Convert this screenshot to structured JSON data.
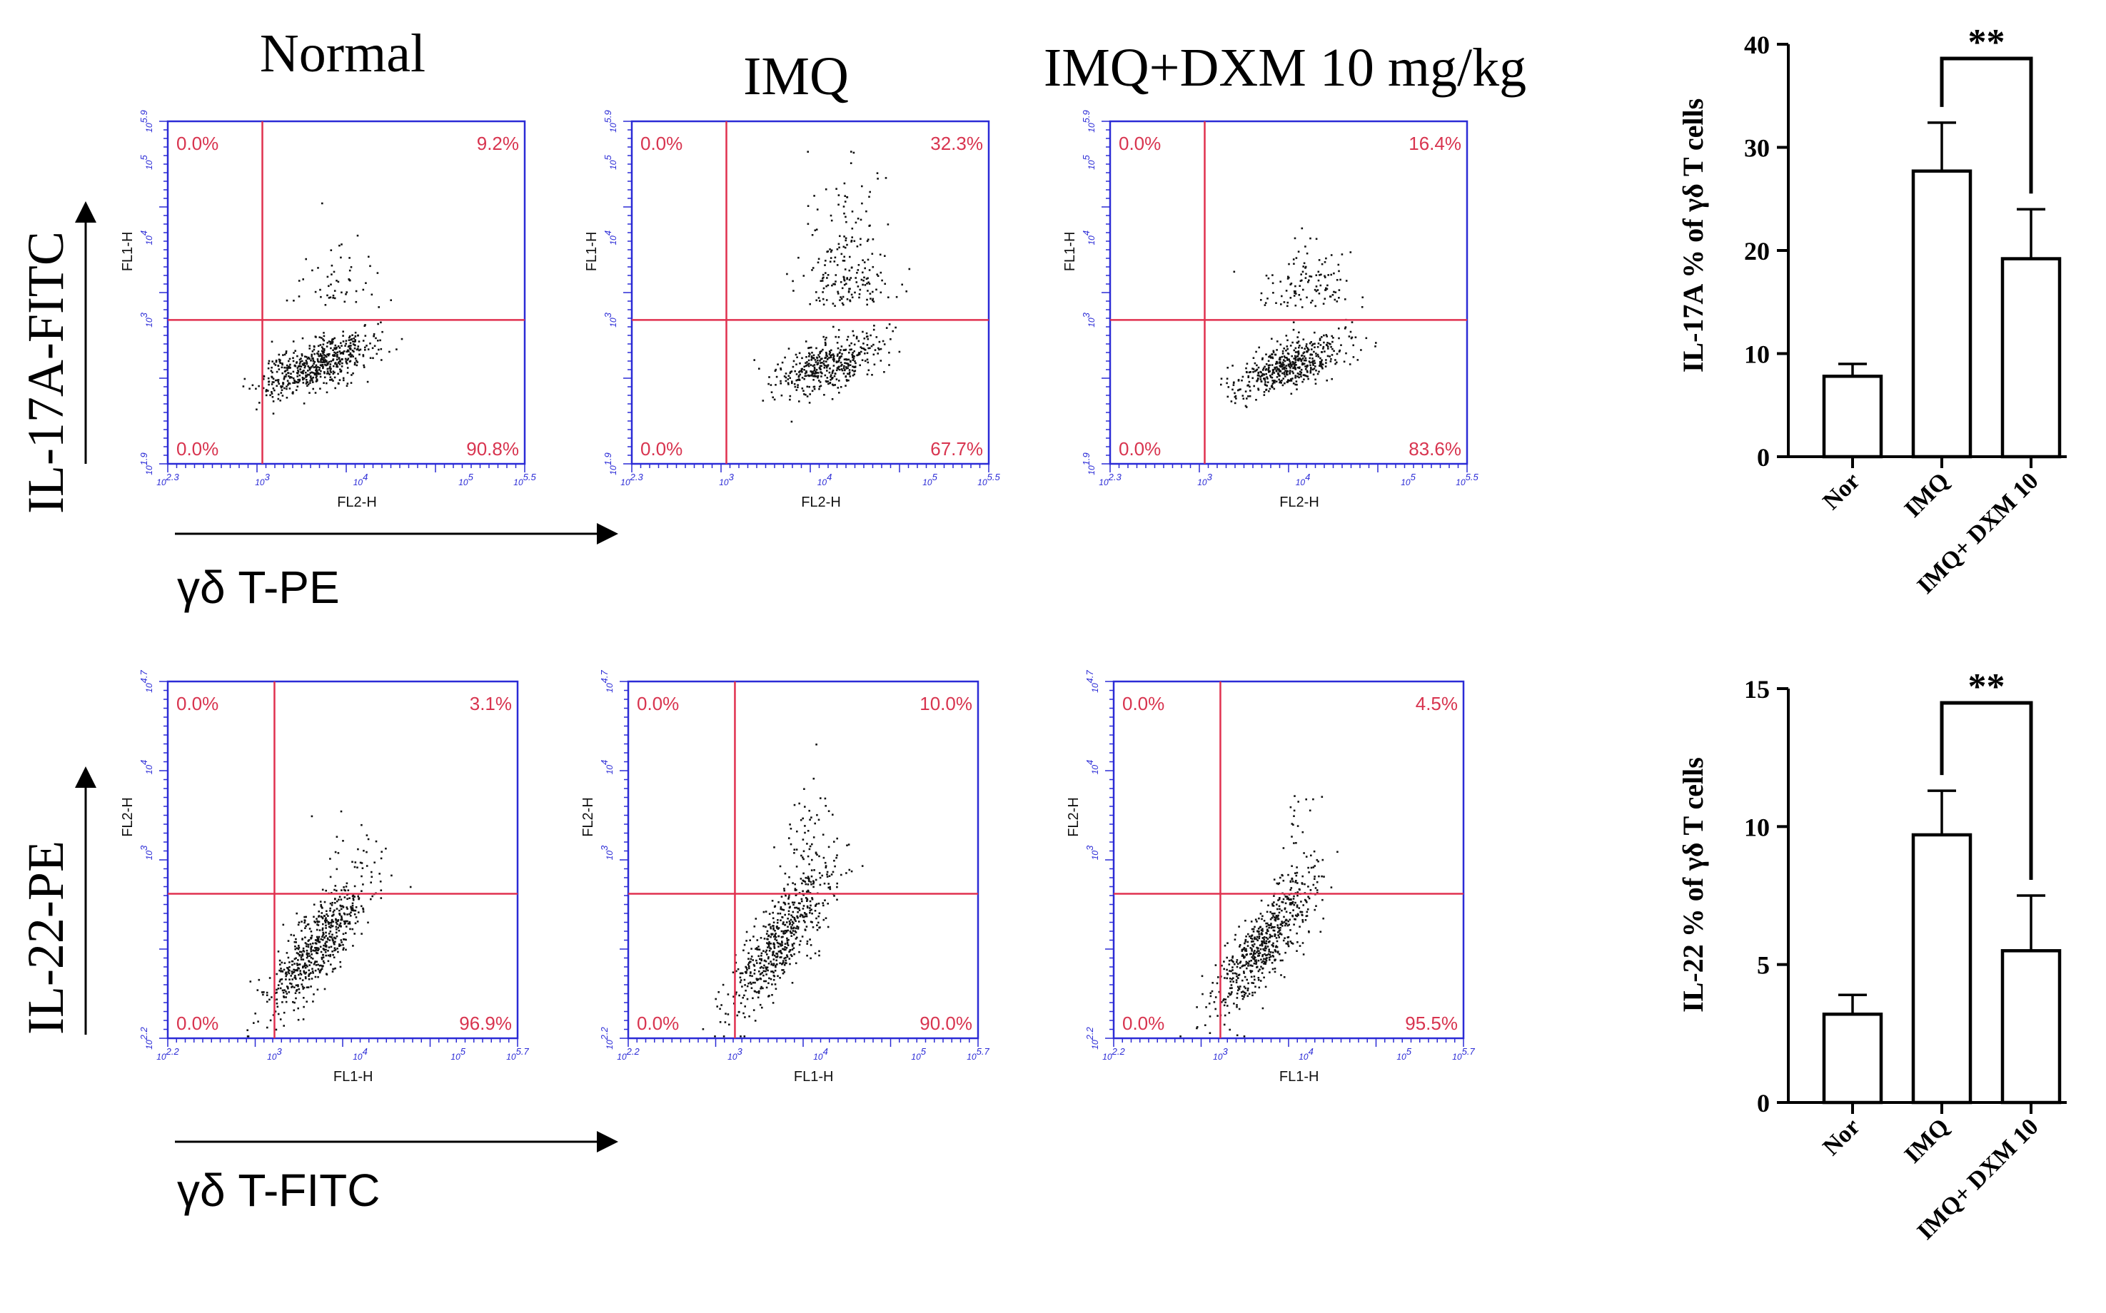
{
  "colors": {
    "plot_frame": "#2b2bd6",
    "gate_line": "#e0314f",
    "quadrant_text": "#d8344f",
    "dot": "#111111",
    "bar_outline": "#000000"
  },
  "column_titles": [
    "Normal",
    "IMQ",
    "IMQ+DXM 10 mg/kg"
  ],
  "row1": {
    "y_marker_label": "IL-17A-FITC",
    "x_marker_label": "γδ T-PE",
    "plot_y_axis_label": "FL1-H",
    "plot_x_axis_label": "FL2-H",
    "x_ticks": [
      "2.3",
      "3",
      "4",
      "5",
      "5.5"
    ],
    "y_ticks": [
      "1.9",
      "3",
      "4",
      "5",
      "5.9"
    ],
    "panels": [
      {
        "name": "Normal",
        "q_ul": "0.0%",
        "q_ur": "9.2%",
        "q_ll": "0.0%",
        "q_lr": "90.8%"
      },
      {
        "name": "IMQ",
        "q_ul": "0.0%",
        "q_ur": "32.3%",
        "q_ll": "0.0%",
        "q_lr": "67.7%"
      },
      {
        "name": "IMQ+DXM 10 mg/kg",
        "q_ul": "0.0%",
        "q_ur": "16.4%",
        "q_ll": "0.0%",
        "q_lr": "83.6%"
      }
    ]
  },
  "row2": {
    "y_marker_label": "IL-22-PE",
    "x_marker_label": "γδ T-FITC",
    "plot_y_axis_label": "FL2-H",
    "plot_x_axis_label": "FL1-H",
    "x_ticks": [
      "2.2",
      "3",
      "4",
      "5",
      "5.7"
    ],
    "y_ticks": [
      "2.2",
      "3",
      "4",
      "4.7"
    ],
    "panels": [
      {
        "name": "Normal",
        "q_ul": "0.0%",
        "q_ur": "3.1%",
        "q_ll": "0.0%",
        "q_lr": "96.9%"
      },
      {
        "name": "IMQ",
        "q_ul": "0.0%",
        "q_ur": "10.0%",
        "q_ll": "0.0%",
        "q_lr": "90.0%"
      },
      {
        "name": "IMQ+DXM 10 mg/kg",
        "q_ul": "0.0%",
        "q_ur": "4.5%",
        "q_ll": "0.0%",
        "q_lr": "95.5%"
      }
    ]
  },
  "chart_data": [
    {
      "type": "bar",
      "title": "",
      "categories": [
        "Nor",
        "IMQ",
        "IMQ+ DXM 10"
      ],
      "values": [
        7.8,
        27.7,
        19.2
      ],
      "errors": [
        1.2,
        4.7,
        4.8
      ],
      "ylabel": "IL-17A % of γδ T cells",
      "xlabel": "",
      "ylim": [
        0,
        40
      ],
      "yticks": [
        0,
        10,
        20,
        30,
        40
      ],
      "significance": {
        "from": 1,
        "to": 2,
        "label": "**"
      }
    },
    {
      "type": "bar",
      "title": "",
      "categories": [
        "Nor",
        "IMQ",
        "IMQ+ DXM 10"
      ],
      "values": [
        3.2,
        9.7,
        5.5
      ],
      "errors": [
        0.7,
        1.6,
        2.0
      ],
      "ylabel": "IL-22 % of γδ T cells",
      "xlabel": "",
      "ylim": [
        0,
        15
      ],
      "yticks": [
        0,
        5,
        10,
        15
      ],
      "significance": {
        "from": 1,
        "to": 2,
        "label": "**"
      }
    }
  ]
}
